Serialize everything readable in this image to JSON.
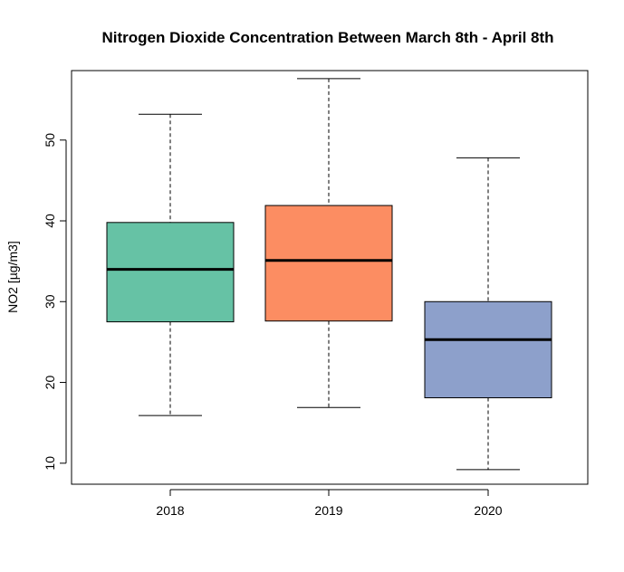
{
  "chart_data": {
    "type": "boxplot",
    "title": "Nitrogen Dioxide Concentration Between March 8th - April 8th",
    "xlabel": "",
    "ylabel": "NO2 [µg/m3]",
    "ylim": [
      7.4,
      58.6
    ],
    "yticks": [
      "10",
      "20",
      "30",
      "40",
      "50"
    ],
    "grid": false,
    "legend": "none",
    "categories": [
      "2018",
      "2019",
      "2020"
    ],
    "boxes": [
      {
        "category": "2018",
        "min": 15.9,
        "q1": 27.5,
        "median": 34.0,
        "q3": 39.8,
        "max": 53.2,
        "color": "#66C2A5"
      },
      {
        "category": "2019",
        "min": 16.9,
        "q1": 27.6,
        "median": 35.1,
        "q3": 41.9,
        "max": 57.6,
        "color": "#FC8D62"
      },
      {
        "category": "2020",
        "min": 9.2,
        "q1": 18.1,
        "median": 25.3,
        "q3": 30.0,
        "max": 47.8,
        "color": "#8DA0CB"
      }
    ]
  }
}
